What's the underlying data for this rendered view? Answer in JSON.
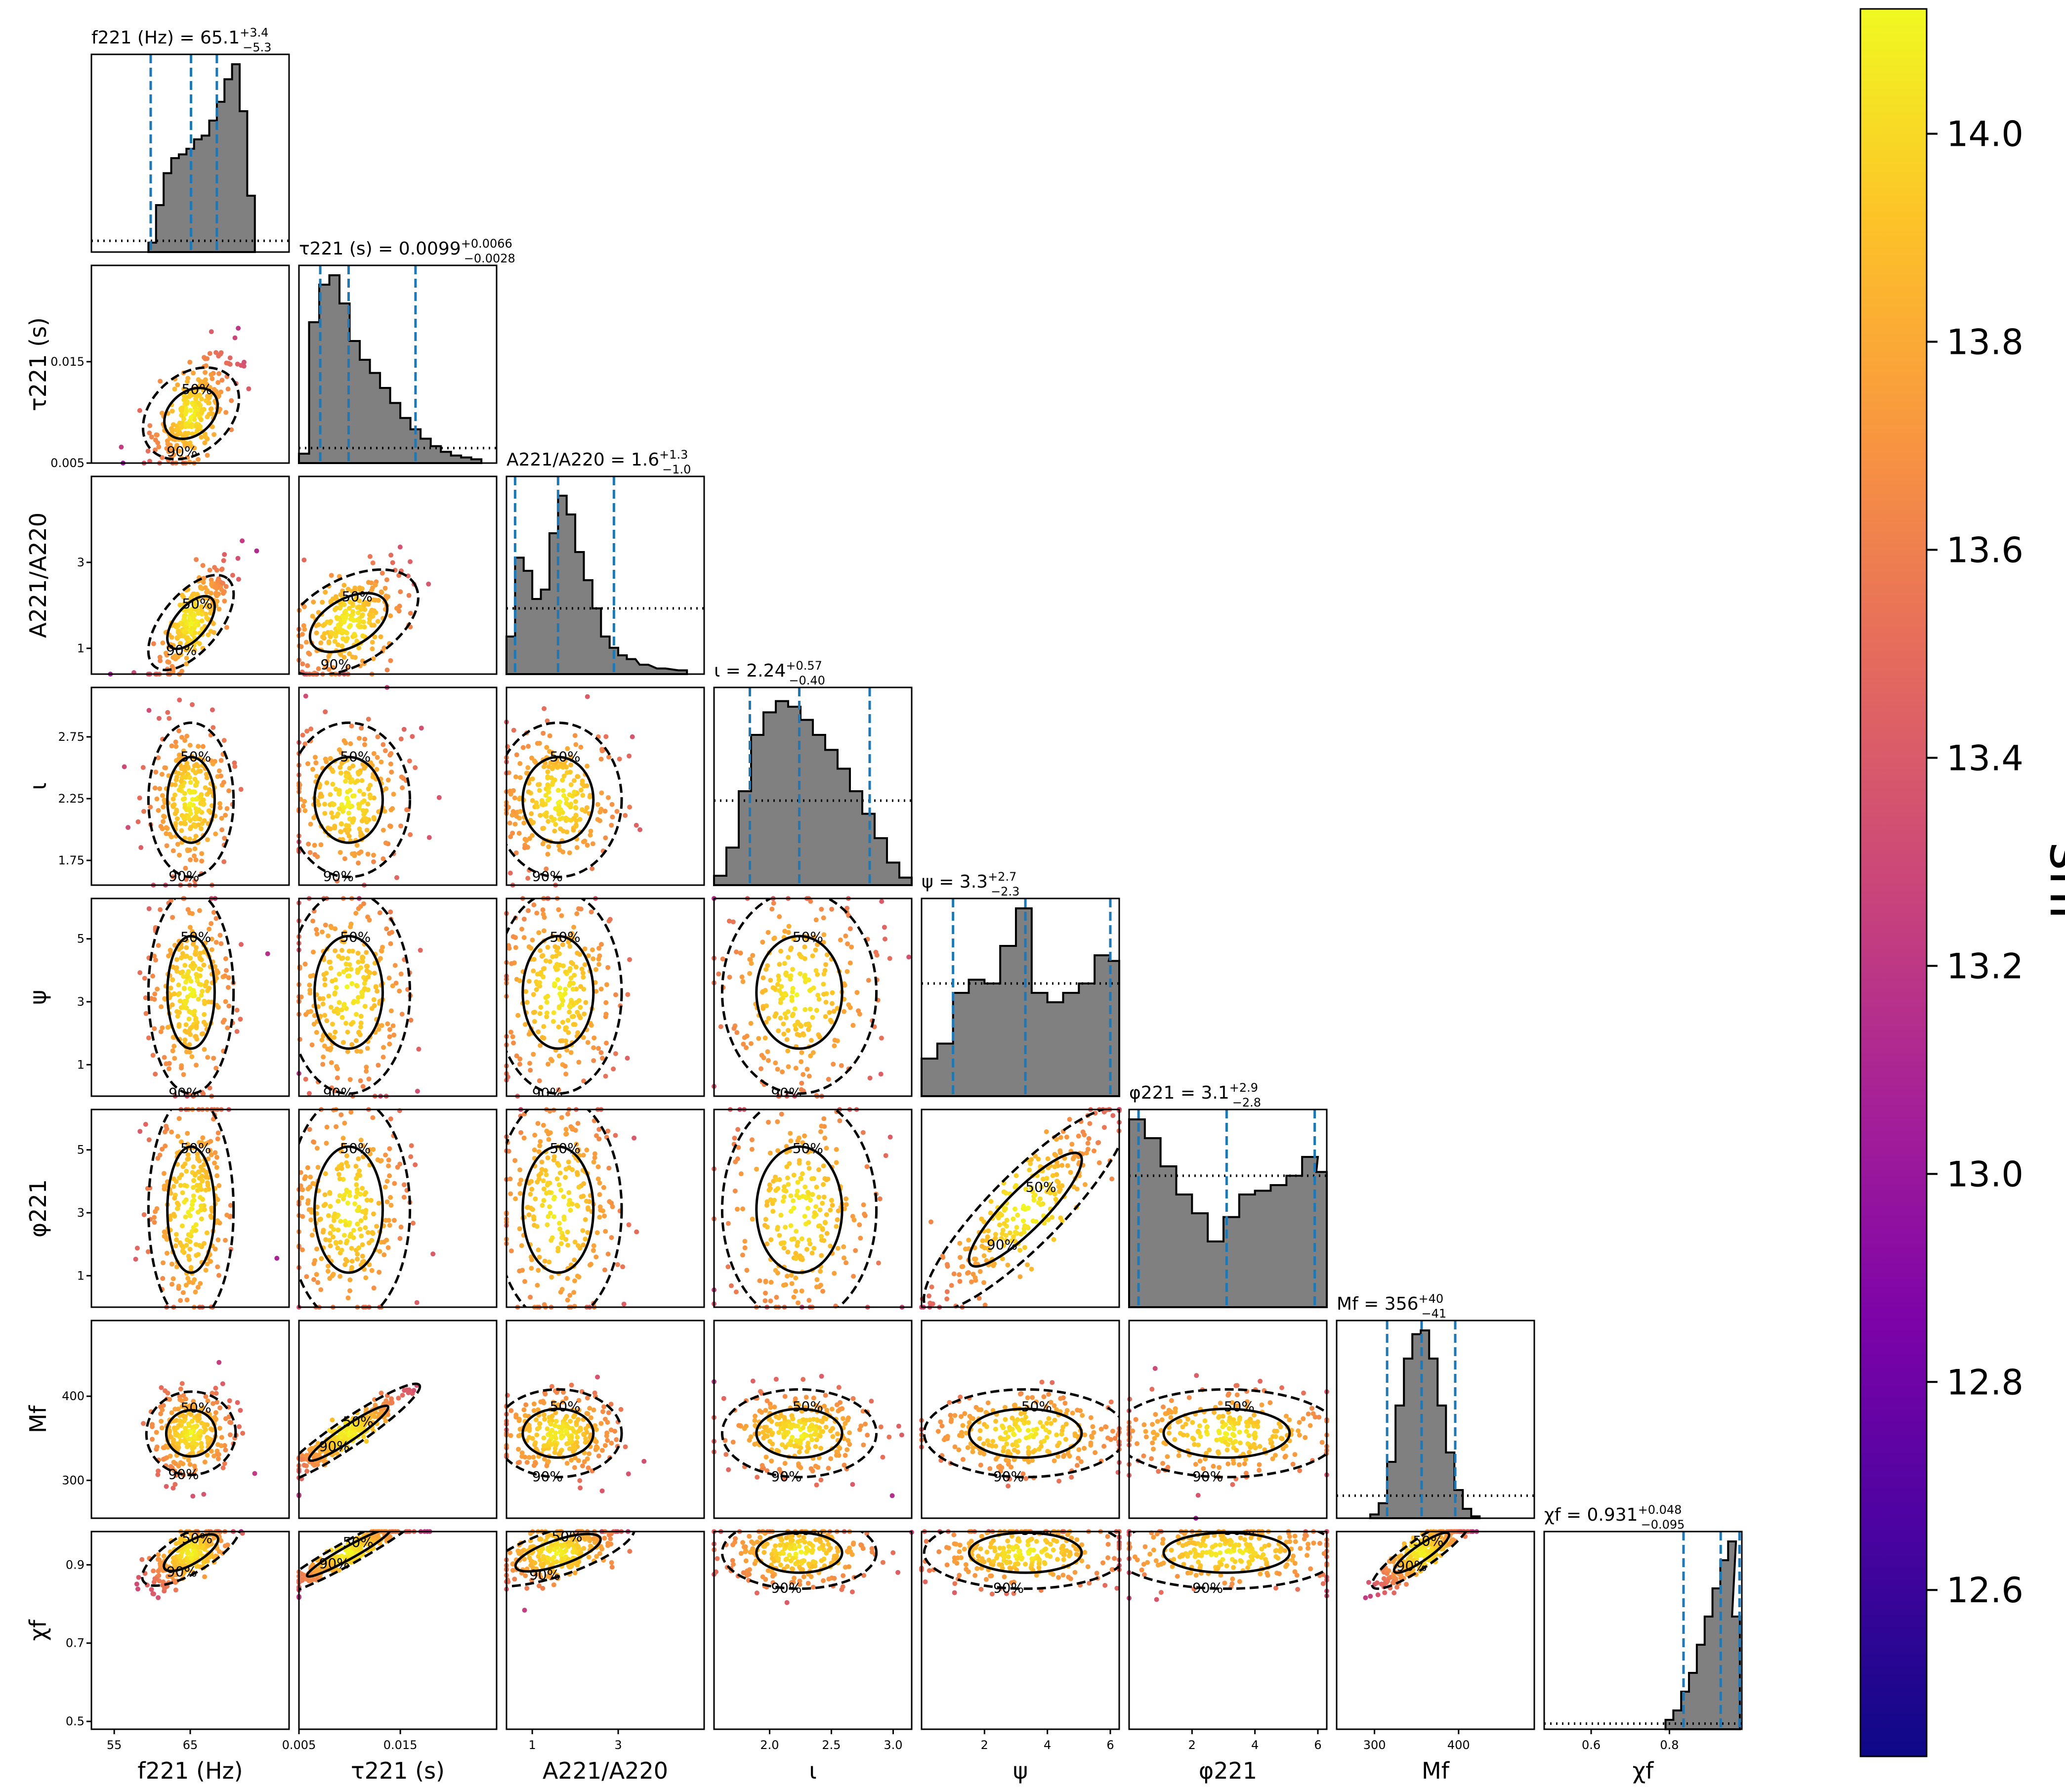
{
  "colorbar": {
    "label": "snr",
    "ticks": [
      12.6,
      12.8,
      13.0,
      13.2,
      13.4,
      13.6,
      13.8,
      14.0
    ],
    "tick_labels": [
      "12.6",
      "12.8",
      "13.0",
      "13.2",
      "13.4",
      "13.6",
      "13.8",
      "14.0"
    ],
    "range": [
      12.44,
      14.12
    ],
    "colormap": "plasma"
  },
  "style": {
    "hist_fill": "#808080",
    "quantile_line": "#1f77b4",
    "contour_color": "#000000"
  },
  "params": [
    {
      "key": "f221",
      "axis_label": "f221 (Hz)",
      "title_main": "f221 (Hz) = 65.1",
      "title_up": "+3.4",
      "title_down": "−5.3",
      "range": [
        52,
        78
      ],
      "ticks": [
        55,
        65
      ],
      "tick_labels": [
        "55",
        "65"
      ]
    },
    {
      "key": "tau221",
      "axis_label": "τ221 (s)",
      "title_main": "τ221 (s) = 0.0099",
      "title_up": "+0.0066",
      "title_down": "−0.0028",
      "range": [
        0.005,
        0.0245
      ],
      "ticks": [
        0.005,
        0.015
      ],
      "tick_labels": [
        "0.005",
        "0.015"
      ]
    },
    {
      "key": "A221/A220",
      "axis_label": "A221/A220",
      "title_main": "A221/A220 = 1.6",
      "title_up": "+1.3",
      "title_down": "−1.0",
      "range": [
        0.4,
        5.0
      ],
      "ticks": [
        1,
        3
      ],
      "tick_labels": [
        "1",
        "3"
      ]
    },
    {
      "key": "iota",
      "axis_label": "ι",
      "title_main": "ι = 2.24",
      "title_up": "+0.57",
      "title_down": "−0.40",
      "range": [
        1.55,
        3.15
      ],
      "ticks": [
        1.75,
        2.25,
        2.75
      ],
      "tick_labels": [
        "1.75",
        "2.25",
        "2.75"
      ],
      "x_ticks": [
        2.0,
        2.5,
        3.0
      ],
      "x_tick_labels": [
        "2.0",
        "2.5",
        "3.0"
      ]
    },
    {
      "key": "psi",
      "axis_label": "ψ",
      "title_main": "ψ = 3.3",
      "title_up": "+2.7",
      "title_down": "−2.3",
      "range": [
        0,
        6.283
      ],
      "ticks": [
        1,
        3,
        5
      ],
      "tick_labels": [
        "1",
        "3",
        "5"
      ],
      "x_ticks": [
        2,
        4,
        6
      ],
      "x_tick_labels": [
        "2",
        "4",
        "6"
      ]
    },
    {
      "key": "phi221",
      "axis_label": "φ221",
      "title_main": "φ221 = 3.1",
      "title_up": "+2.9",
      "title_down": "−2.8",
      "range": [
        0,
        6.283
      ],
      "ticks": [
        1,
        3,
        5
      ],
      "tick_labels": [
        "1",
        "3",
        "5"
      ],
      "x_ticks": [
        2,
        4,
        6
      ],
      "x_tick_labels": [
        "2",
        "4",
        "6"
      ]
    },
    {
      "key": "Mf",
      "axis_label": "Mf",
      "title_main": "Mf = 356",
      "title_up": "+40",
      "title_down": "−41",
      "range": [
        255,
        490
      ],
      "ticks": [
        300,
        400
      ],
      "tick_labels": [
        "300",
        "400"
      ]
    },
    {
      "key": "chif",
      "axis_label": "χf",
      "title_main": "χf = 0.931",
      "title_up": "+0.048",
      "title_down": "−0.095",
      "range": [
        0.48,
        0.985
      ],
      "ticks": [
        0.5,
        0.7,
        0.9
      ],
      "tick_labels": [
        "0.5",
        "0.7",
        "0.9"
      ],
      "x_ticks": [
        0.6,
        0.8
      ],
      "x_tick_labels": [
        "0.6",
        "0.8"
      ]
    }
  ],
  "contour_labels": {
    "inner": "50%",
    "outer": "90%"
  },
  "chart_data": {
    "type": "scatter",
    "subtype": "corner",
    "series_color_by": "snr",
    "marginals": [
      {
        "param": "f221",
        "median": 65.1,
        "lower": 59.8,
        "upper": 68.5,
        "bins": [
          60,
          61,
          62,
          63,
          64,
          65,
          66,
          67,
          68,
          69,
          70,
          71,
          72,
          73
        ],
        "counts": [
          0.05,
          0.25,
          0.42,
          0.5,
          0.52,
          0.55,
          0.6,
          0.62,
          0.7,
          0.8,
          0.92,
          1.0,
          0.75,
          0.3
        ],
        "prior": 0.06
      },
      {
        "param": "tau221",
        "median": 0.0099,
        "lower": 0.0071,
        "upper": 0.0165,
        "bins": [
          0.0055,
          0.0065,
          0.0075,
          0.0085,
          0.0095,
          0.0105,
          0.0115,
          0.0125,
          0.0135,
          0.0145,
          0.0155,
          0.0165,
          0.0175,
          0.0185,
          0.0195,
          0.0205,
          0.0215,
          0.0225
        ],
        "counts": [
          0.05,
          0.75,
          0.95,
          1.0,
          0.85,
          0.65,
          0.55,
          0.48,
          0.4,
          0.32,
          0.24,
          0.18,
          0.13,
          0.09,
          0.06,
          0.04,
          0.03,
          0.02
        ],
        "prior": 0.08
      },
      {
        "param": "A221/A220",
        "median": 1.6,
        "lower": 0.6,
        "upper": 2.9,
        "bins": [
          0.5,
          0.7,
          0.9,
          1.1,
          1.3,
          1.5,
          1.7,
          1.9,
          2.1,
          2.3,
          2.5,
          2.7,
          2.9,
          3.1,
          3.3,
          3.6,
          4.0,
          4.5
        ],
        "counts": [
          0.2,
          0.62,
          0.55,
          0.4,
          0.45,
          0.75,
          0.95,
          0.85,
          0.65,
          0.5,
          0.35,
          0.2,
          0.14,
          0.1,
          0.08,
          0.05,
          0.03,
          0.02
        ],
        "prior": 0.35
      },
      {
        "param": "iota",
        "median": 2.24,
        "lower": 1.84,
        "upper": 2.81,
        "bins": [
          1.6,
          1.7,
          1.8,
          1.9,
          2.0,
          2.1,
          2.2,
          2.3,
          2.4,
          2.5,
          2.6,
          2.7,
          2.8,
          2.9,
          3.0,
          3.1
        ],
        "counts": [
          0.05,
          0.2,
          0.5,
          0.8,
          0.92,
          0.98,
          0.95,
          0.88,
          0.8,
          0.72,
          0.62,
          0.5,
          0.38,
          0.25,
          0.12,
          0.04
        ],
        "prior": 0.45
      },
      {
        "param": "psi",
        "median": 3.3,
        "lower": 1.0,
        "upper": 6.0,
        "bins": [
          0.25,
          0.75,
          1.25,
          1.75,
          2.25,
          2.75,
          3.25,
          3.75,
          4.25,
          4.75,
          5.25,
          5.75,
          6.2
        ],
        "counts": [
          0.2,
          0.28,
          0.55,
          0.62,
          0.6,
          0.8,
          1.0,
          0.55,
          0.5,
          0.55,
          0.6,
          0.75,
          0.72
        ],
        "prior": 0.6
      },
      {
        "param": "phi221",
        "median": 3.1,
        "lower": 0.3,
        "upper": 5.9,
        "bins": [
          0.25,
          0.75,
          1.25,
          1.75,
          2.25,
          2.75,
          3.25,
          3.75,
          4.25,
          4.75,
          5.25,
          5.75,
          6.2
        ],
        "counts": [
          1.0,
          0.9,
          0.75,
          0.6,
          0.5,
          0.35,
          0.48,
          0.6,
          0.62,
          0.65,
          0.7,
          0.8,
          0.72
        ],
        "prior": 0.7
      },
      {
        "param": "Mf",
        "median": 356,
        "lower": 315,
        "upper": 396,
        "bins": [
          300,
          310,
          320,
          330,
          340,
          350,
          360,
          370,
          380,
          390,
          400,
          410,
          420
        ],
        "counts": [
          0.02,
          0.08,
          0.3,
          0.6,
          0.85,
          0.98,
          1.0,
          0.85,
          0.6,
          0.35,
          0.15,
          0.05,
          0.01
        ],
        "prior": 0.12
      },
      {
        "param": "chif",
        "median": 0.931,
        "lower": 0.836,
        "upper": 0.979,
        "bins": [
          0.8,
          0.82,
          0.84,
          0.86,
          0.88,
          0.9,
          0.92,
          0.94,
          0.96,
          0.97
        ],
        "counts": [
          0.05,
          0.1,
          0.2,
          0.3,
          0.45,
          0.6,
          0.75,
          0.9,
          1.0,
          0.6
        ],
        "prior": 0.03
      }
    ],
    "pairs": [
      {
        "x": "f221",
        "y": "tau221",
        "rho": 0.6
      },
      {
        "x": "f221",
        "y": "A221/A220",
        "rho": 0.8
      },
      {
        "x": "tau221",
        "y": "A221/A220",
        "rho": 0.55
      },
      {
        "x": "f221",
        "y": "iota",
        "rho": 0.0
      },
      {
        "x": "f221",
        "y": "Mf",
        "rho": 0.1
      },
      {
        "x": "tau221",
        "y": "Mf",
        "rho": 0.95
      },
      {
        "x": "f221",
        "y": "chif",
        "rho": 0.7
      },
      {
        "x": "tau221",
        "y": "chif",
        "rho": 0.95
      },
      {
        "x": "A221/A220",
        "y": "chif",
        "rho": 0.6
      },
      {
        "x": "Mf",
        "y": "chif",
        "rho": 0.85
      },
      {
        "x": "psi",
        "y": "phi221",
        "rho": 0.9
      }
    ]
  }
}
